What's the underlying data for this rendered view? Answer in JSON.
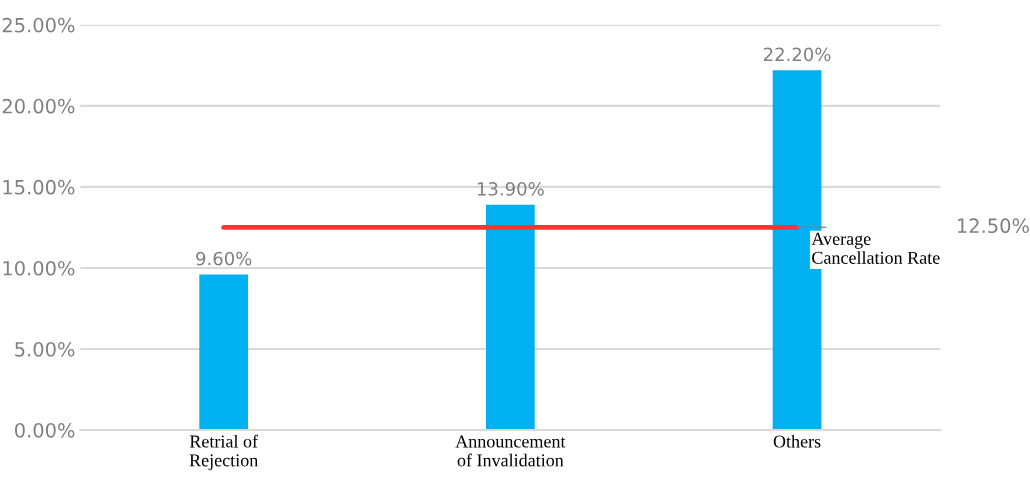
{
  "chart_data": {
    "type": "bar",
    "categories": [
      "Retrial of\nRejection",
      "Announcement\nof Invalidation",
      "Others"
    ],
    "values": [
      9.6,
      13.9,
      22.2
    ],
    "color": "#00b0f0",
    "value_labels": [
      "9.60%",
      "13.90%",
      "22.20%"
    ],
    "ylim": [
      0,
      25
    ],
    "yticks": [
      {
        "value": 0,
        "label": "0.00%"
      },
      {
        "value": 5,
        "label": "5.00%"
      },
      {
        "value": 10,
        "label": "10.00%"
      },
      {
        "value": 15,
        "label": "15.00%"
      },
      {
        "value": 20,
        "label": "20.00%"
      },
      {
        "value": 25,
        "label": "25.00%"
      }
    ],
    "grid": "y",
    "ref_lines": [
      {
        "axis": "y",
        "value": 12.5,
        "label": "Average\nCancellation Rate",
        "color": "#ff3333"
      }
    ],
    "annotations": [
      "12.50%"
    ]
  }
}
